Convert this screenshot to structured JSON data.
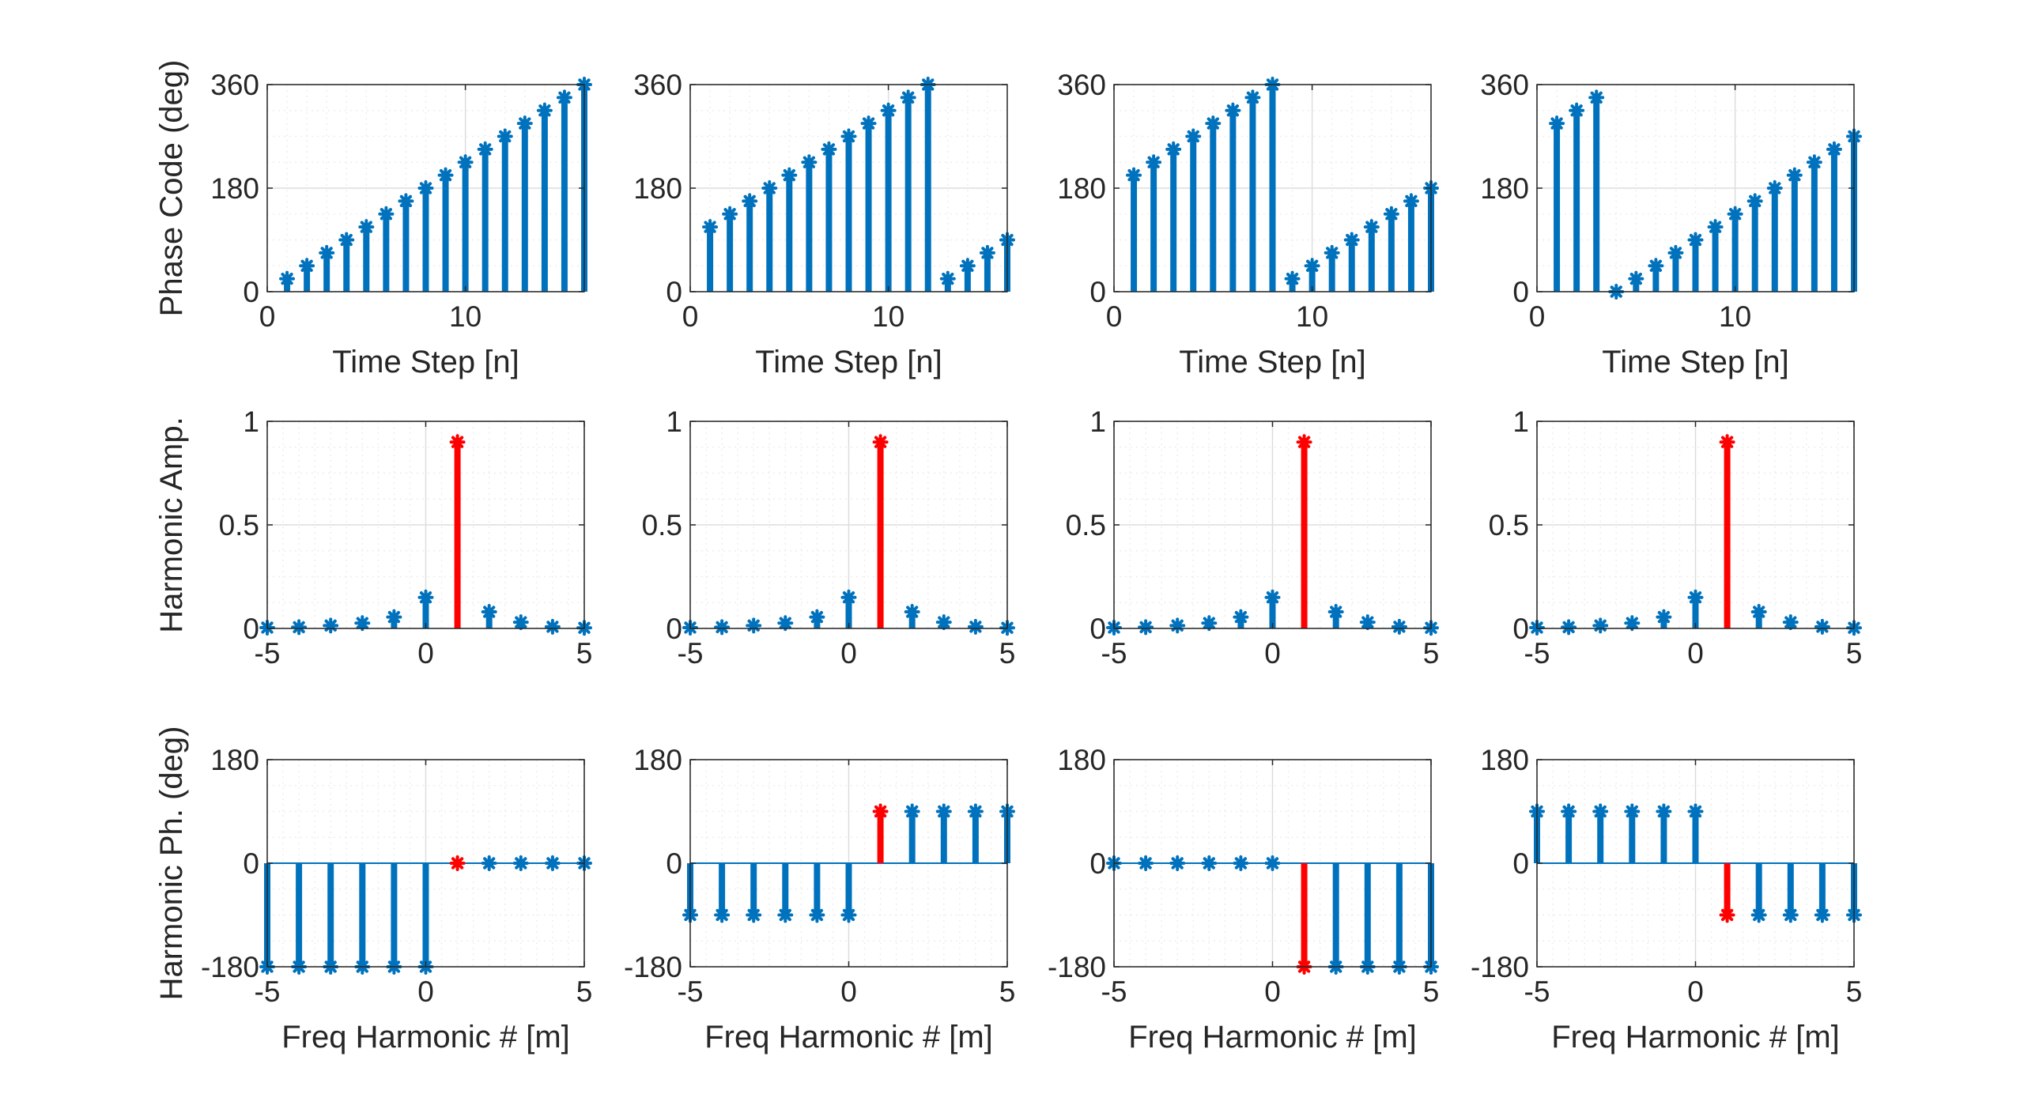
{
  "colors": {
    "series": "#0072BD",
    "highlight": "#FF0000",
    "axis": "#262626",
    "grid": "#DDDDDD",
    "minorGrid": "#EEEEEE"
  },
  "row_labels": {
    "phase_code": {
      "ylabel": "Phase Code (deg)",
      "xlabel": "Time Step [n]"
    },
    "harmonic_amp": {
      "ylabel": "Harmonic Amp.",
      "xlabel": ""
    },
    "harmonic_ph": {
      "ylabel": "Harmonic Ph. (deg)",
      "xlabel": "Freq Harmonic # [m]"
    }
  },
  "chart_data": [
    {
      "type": "stem",
      "row": 0,
      "col": 0,
      "xlabel": "Time Step [n]",
      "ylabel": "Phase Code (deg)",
      "xlim": [
        0,
        16
      ],
      "ylim": [
        0,
        360
      ],
      "xticks": [
        0,
        10
      ],
      "yticks": [
        0,
        180,
        360
      ],
      "x": [
        1,
        2,
        3,
        4,
        5,
        6,
        7,
        8,
        9,
        10,
        11,
        12,
        13,
        14,
        15,
        16
      ],
      "values": [
        22.5,
        45,
        67.5,
        90,
        112.5,
        135,
        157.5,
        180,
        202.5,
        225,
        247.5,
        270,
        292.5,
        315,
        337.5,
        360
      ],
      "highlight_x": null
    },
    {
      "type": "stem",
      "row": 0,
      "col": 1,
      "xlabel": "Time Step [n]",
      "ylabel": "",
      "xlim": [
        0,
        16
      ],
      "ylim": [
        0,
        360
      ],
      "xticks": [
        0,
        10
      ],
      "yticks": [
        0,
        180,
        360
      ],
      "x": [
        1,
        2,
        3,
        4,
        5,
        6,
        7,
        8,
        9,
        10,
        11,
        12,
        13,
        14,
        15,
        16
      ],
      "values": [
        112.5,
        135,
        157.5,
        180,
        202.5,
        225,
        247.5,
        270,
        292.5,
        315,
        337.5,
        360,
        22.5,
        45,
        67.5,
        90
      ],
      "highlight_x": null
    },
    {
      "type": "stem",
      "row": 0,
      "col": 2,
      "xlabel": "Time Step [n]",
      "ylabel": "",
      "xlim": [
        0,
        16
      ],
      "ylim": [
        0,
        360
      ],
      "xticks": [
        0,
        10
      ],
      "yticks": [
        0,
        180,
        360
      ],
      "x": [
        1,
        2,
        3,
        4,
        5,
        6,
        7,
        8,
        9,
        10,
        11,
        12,
        13,
        14,
        15,
        16
      ],
      "values": [
        202.5,
        225,
        247.5,
        270,
        292.5,
        315,
        337.5,
        360,
        22.5,
        45,
        67.5,
        90,
        112.5,
        135,
        157.5,
        180
      ],
      "highlight_x": null
    },
    {
      "type": "stem",
      "row": 0,
      "col": 3,
      "xlabel": "Time Step [n]",
      "ylabel": "",
      "xlim": [
        0,
        16
      ],
      "ylim": [
        0,
        360
      ],
      "xticks": [
        0,
        10
      ],
      "yticks": [
        0,
        180,
        360
      ],
      "x": [
        1,
        2,
        3,
        4,
        5,
        6,
        7,
        8,
        9,
        10,
        11,
        12,
        13,
        14,
        15,
        16
      ],
      "values": [
        292.5,
        315,
        337.5,
        0,
        22.5,
        45,
        67.5,
        90,
        112.5,
        135,
        157.5,
        180,
        202.5,
        225,
        247.5,
        270
      ],
      "highlight_x": null
    },
    {
      "type": "stem",
      "row": 1,
      "col": 0,
      "xlabel": "",
      "ylabel": "Harmonic Amp.",
      "xlim": [
        -5,
        5
      ],
      "ylim": [
        0,
        1
      ],
      "xticks": [
        -5,
        0,
        5
      ],
      "yticks": [
        0,
        0.5,
        1
      ],
      "x": [
        -5,
        -4,
        -3,
        -2,
        -1,
        0,
        1,
        2,
        3,
        4,
        5
      ],
      "values": [
        0.004,
        0.006,
        0.014,
        0.026,
        0.055,
        0.15,
        0.9,
        0.08,
        0.03,
        0.008,
        0.003
      ],
      "highlight_x": 1
    },
    {
      "type": "stem",
      "row": 1,
      "col": 1,
      "xlabel": "",
      "ylabel": "",
      "xlim": [
        -5,
        5
      ],
      "ylim": [
        0,
        1
      ],
      "xticks": [
        -5,
        0,
        5
      ],
      "yticks": [
        0,
        0.5,
        1
      ],
      "x": [
        -5,
        -4,
        -3,
        -2,
        -1,
        0,
        1,
        2,
        3,
        4,
        5
      ],
      "values": [
        0.004,
        0.006,
        0.014,
        0.026,
        0.055,
        0.15,
        0.9,
        0.08,
        0.03,
        0.008,
        0.003
      ],
      "highlight_x": 1
    },
    {
      "type": "stem",
      "row": 1,
      "col": 2,
      "xlabel": "",
      "ylabel": "",
      "xlim": [
        -5,
        5
      ],
      "ylim": [
        0,
        1
      ],
      "xticks": [
        -5,
        0,
        5
      ],
      "yticks": [
        0,
        0.5,
        1
      ],
      "x": [
        -5,
        -4,
        -3,
        -2,
        -1,
        0,
        1,
        2,
        3,
        4,
        5
      ],
      "values": [
        0.004,
        0.006,
        0.014,
        0.026,
        0.055,
        0.15,
        0.9,
        0.08,
        0.03,
        0.008,
        0.003
      ],
      "highlight_x": 1
    },
    {
      "type": "stem",
      "row": 1,
      "col": 3,
      "xlabel": "",
      "ylabel": "",
      "xlim": [
        -5,
        5
      ],
      "ylim": [
        0,
        1
      ],
      "xticks": [
        -5,
        0,
        5
      ],
      "yticks": [
        0,
        0.5,
        1
      ],
      "x": [
        -5,
        -4,
        -3,
        -2,
        -1,
        0,
        1,
        2,
        3,
        4,
        5
      ],
      "values": [
        0.004,
        0.006,
        0.014,
        0.026,
        0.055,
        0.15,
        0.9,
        0.08,
        0.03,
        0.008,
        0.003
      ],
      "highlight_x": 1
    },
    {
      "type": "stem",
      "row": 2,
      "col": 0,
      "xlabel": "Freq Harmonic # [m]",
      "ylabel": "Harmonic Ph. (deg)",
      "xlim": [
        -5,
        5
      ],
      "ylim": [
        -180,
        180
      ],
      "xticks": [
        -5,
        0,
        5
      ],
      "yticks": [
        -180,
        0,
        180
      ],
      "x": [
        -5,
        -4,
        -3,
        -2,
        -1,
        0,
        1,
        2,
        3,
        4,
        5
      ],
      "values": [
        -180,
        -180,
        -180,
        -180,
        -180,
        -180,
        0,
        0,
        0,
        0,
        0
      ],
      "highlight_x": 1
    },
    {
      "type": "stem",
      "row": 2,
      "col": 1,
      "xlabel": "Freq Harmonic # [m]",
      "ylabel": "",
      "xlim": [
        -5,
        5
      ],
      "ylim": [
        -180,
        180
      ],
      "xticks": [
        -5,
        0,
        5
      ],
      "yticks": [
        -180,
        0,
        180
      ],
      "x": [
        -5,
        -4,
        -3,
        -2,
        -1,
        0,
        1,
        2,
        3,
        4,
        5
      ],
      "values": [
        -90,
        -90,
        -90,
        -90,
        -90,
        -90,
        90,
        90,
        90,
        90,
        90
      ],
      "highlight_x": 1
    },
    {
      "type": "stem",
      "row": 2,
      "col": 2,
      "xlabel": "Freq Harmonic # [m]",
      "ylabel": "",
      "xlim": [
        -5,
        5
      ],
      "ylim": [
        -180,
        180
      ],
      "xticks": [
        -5,
        0,
        5
      ],
      "yticks": [
        -180,
        0,
        180
      ],
      "x": [
        -5,
        -4,
        -3,
        -2,
        -1,
        0,
        1,
        2,
        3,
        4,
        5
      ],
      "values": [
        0,
        0,
        0,
        0,
        0,
        0,
        -180,
        -180,
        -180,
        -180,
        -180
      ],
      "highlight_x": 1
    },
    {
      "type": "stem",
      "row": 2,
      "col": 3,
      "xlabel": "Freq Harmonic # [m]",
      "ylabel": "",
      "xlim": [
        -5,
        5
      ],
      "ylim": [
        -180,
        180
      ],
      "xticks": [
        -5,
        0,
        5
      ],
      "yticks": [
        -180,
        0,
        180
      ],
      "x": [
        -5,
        -4,
        -3,
        -2,
        -1,
        0,
        1,
        2,
        3,
        4,
        5
      ],
      "values": [
        90,
        90,
        90,
        90,
        90,
        90,
        -90,
        -90,
        -90,
        -90,
        -90
      ],
      "highlight_x": 1
    }
  ]
}
